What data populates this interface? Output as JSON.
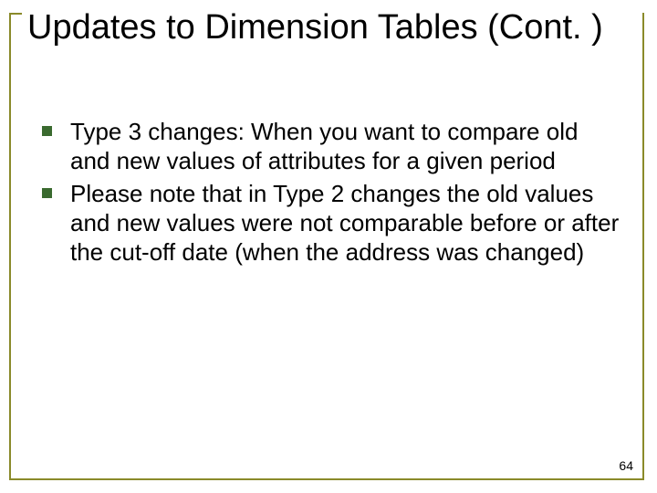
{
  "title": "Updates to Dimension Tables (Cont. )",
  "title_color": "#000000",
  "title_fontsize": 38,
  "bullets": [
    "Type 3 changes: When you want to compare old and new values of attributes for a given period",
    "Please note that in Type 2 changes the old values and new values were not comparable before or after the cut-off date (when the address was changed)"
  ],
  "bullet_marker_color": "#3a6a2f",
  "bullet_text_color": "#000000",
  "bullet_fontsize": 26,
  "border_color": "#8a8a2a",
  "background_color": "#ffffff",
  "page_number": "64",
  "page_number_color": "#000000",
  "page_number_fontsize": 14
}
